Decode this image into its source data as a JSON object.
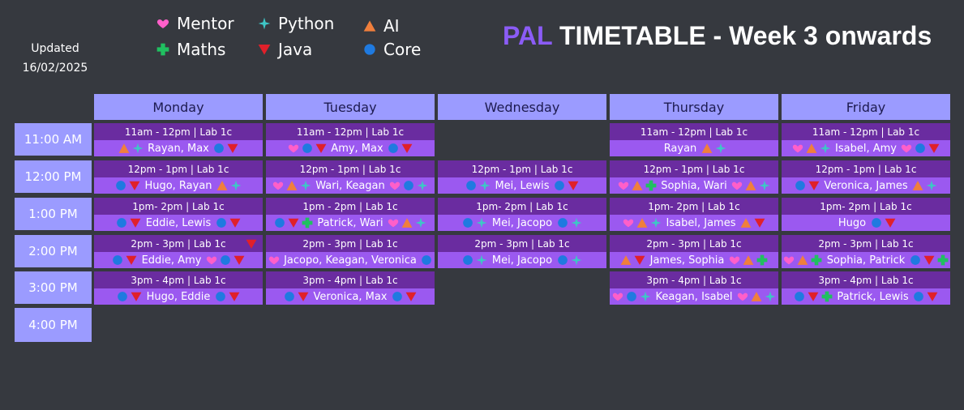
{
  "updated": {
    "label": "Updated",
    "date": "16/02/2025"
  },
  "legend": [
    {
      "label": "Mentor",
      "icon": "heart"
    },
    {
      "label": "Python",
      "icon": "sparkle"
    },
    {
      "label": "AI",
      "icon": "triangle"
    },
    {
      "label": "Maths",
      "icon": "cross"
    },
    {
      "label": "Java",
      "icon": "down-triangle"
    },
    {
      "label": "Core",
      "icon": "dot"
    }
  ],
  "title": {
    "prefix": "PAL",
    "rest": "TIMETABLE - Week 3 onwards"
  },
  "days": [
    "Monday",
    "Tuesday",
    "Wednesday",
    "Thursday",
    "Friday"
  ],
  "times": [
    "11:00 AM",
    "12:00 PM",
    "1:00 PM",
    "2:00 PM",
    "3:00 PM",
    "4:00 PM"
  ],
  "colors": {
    "heart": "#ff5fc9",
    "sparkle": "#3ec6c6",
    "triangle": "#f07f3c",
    "cross": "#20c060",
    "down-triangle": "#e0202a",
    "dot": "#1f7ae0"
  },
  "slots": [
    {
      "day": 0,
      "time": 0,
      "header": "11am - 12pm  |  Lab 1c",
      "names": "Rayan, Max",
      "pre": [
        "triangle",
        "sparkle"
      ],
      "post": [
        "dot",
        "down-triangle"
      ]
    },
    {
      "day": 1,
      "time": 0,
      "header": "11am - 12pm  |  Lab 1c",
      "names": "Amy, Max",
      "pre": [
        "heart",
        "dot",
        "down-triangle"
      ],
      "post": [
        "dot",
        "down-triangle"
      ]
    },
    {
      "day": 3,
      "time": 0,
      "header": "11am - 12pm  |  Lab 1c",
      "names": "Rayan",
      "pre": [],
      "post": [
        "triangle",
        "sparkle"
      ]
    },
    {
      "day": 4,
      "time": 0,
      "header": "11am - 12pm  |  Lab 1c",
      "names": "Isabel, Amy",
      "pre": [
        "heart",
        "triangle",
        "sparkle"
      ],
      "post": [
        "heart",
        "dot",
        "down-triangle"
      ]
    },
    {
      "day": 0,
      "time": 1,
      "header": "12pm - 1pm  |  Lab 1c",
      "names": "Hugo, Rayan",
      "pre": [
        "dot",
        "down-triangle"
      ],
      "post": [
        "triangle",
        "sparkle"
      ]
    },
    {
      "day": 1,
      "time": 1,
      "header": "12pm - 1pm  |  Lab 1c",
      "names": "Wari, Keagan",
      "pre": [
        "heart",
        "triangle",
        "sparkle"
      ],
      "post": [
        "heart",
        "dot",
        "sparkle"
      ]
    },
    {
      "day": 2,
      "time": 1,
      "header": "12pm - 1pm  |  Lab 1c",
      "names": "Mei, Lewis",
      "pre": [
        "dot",
        "sparkle"
      ],
      "post": [
        "dot",
        "down-triangle"
      ]
    },
    {
      "day": 3,
      "time": 1,
      "header": "12pm - 1pm  |  Lab 1c",
      "names": "Sophia, Wari",
      "pre": [
        "heart",
        "triangle",
        "cross"
      ],
      "post": [
        "heart",
        "triangle",
        "sparkle"
      ]
    },
    {
      "day": 4,
      "time": 1,
      "header": "12pm - 1pm  |  Lab 1c",
      "names": "Veronica, James",
      "pre": [
        "dot",
        "down-triangle"
      ],
      "post": [
        "triangle",
        "sparkle"
      ]
    },
    {
      "day": 0,
      "time": 2,
      "header": "1pm- 2pm  |  Lab 1c",
      "names": "Eddie, Lewis",
      "pre": [
        "dot",
        "down-triangle"
      ],
      "post": [
        "dot",
        "down-triangle"
      ]
    },
    {
      "day": 1,
      "time": 2,
      "header": "1pm - 2pm  |  Lab 1c",
      "names": "Patrick, Wari",
      "pre": [
        "dot",
        "down-triangle",
        "cross"
      ],
      "post": [
        "heart",
        "triangle",
        "sparkle"
      ]
    },
    {
      "day": 2,
      "time": 2,
      "header": "1pm- 2pm  |  Lab 1c",
      "names": "Mei, Jacopo",
      "pre": [
        "dot",
        "sparkle"
      ],
      "post": [
        "dot",
        "sparkle"
      ]
    },
    {
      "day": 3,
      "time": 2,
      "header": "1pm- 2pm  |  Lab 1c",
      "names": "Isabel, James",
      "pre": [
        "heart",
        "triangle",
        "sparkle"
      ],
      "post": [
        "triangle",
        "down-triangle"
      ]
    },
    {
      "day": 4,
      "time": 2,
      "header": "1pm- 2pm  |  Lab 1c",
      "names": "Hugo",
      "pre": [],
      "post": [
        "dot",
        "down-triangle"
      ]
    },
    {
      "day": 0,
      "time": 3,
      "header": "2pm - 3pm  |  Lab 1c",
      "names": "Eddie, Amy",
      "pre": [
        "dot",
        "down-triangle"
      ],
      "post": [
        "heart",
        "dot",
        "down-triangle"
      ],
      "extra": "down-triangle"
    },
    {
      "day": 1,
      "time": 3,
      "header": "2pm - 3pm  |  Lab 1c",
      "names": "Jacopo, Keagan, Veronica",
      "pre": [
        "heart"
      ],
      "post": [
        "dot"
      ]
    },
    {
      "day": 2,
      "time": 3,
      "header": "2pm - 3pm  |  Lab 1c",
      "names": "Mei, Jacopo",
      "pre": [
        "dot",
        "sparkle"
      ],
      "post": [
        "dot",
        "sparkle"
      ]
    },
    {
      "day": 3,
      "time": 3,
      "header": "2pm - 3pm  |  Lab 1c",
      "names": "James, Sophia",
      "pre": [
        "triangle",
        "down-triangle"
      ],
      "post": [
        "heart",
        "triangle",
        "cross"
      ]
    },
    {
      "day": 4,
      "time": 3,
      "header": "2pm - 3pm  |  Lab 1c",
      "names": "Sophia, Patrick",
      "pre": [
        "heart",
        "triangle",
        "cross"
      ],
      "post": [
        "dot",
        "down-triangle",
        "cross"
      ]
    },
    {
      "day": 0,
      "time": 4,
      "header": "3pm - 4pm  |  Lab 1c",
      "names": "Hugo, Eddie",
      "pre": [
        "dot",
        "down-triangle"
      ],
      "post": [
        "dot",
        "down-triangle"
      ]
    },
    {
      "day": 1,
      "time": 4,
      "header": "3pm - 4pm  |  Lab 1c",
      "names": "Veronica, Max",
      "pre": [
        "dot",
        "down-triangle"
      ],
      "post": [
        "dot",
        "down-triangle"
      ]
    },
    {
      "day": 3,
      "time": 4,
      "header": "3pm - 4pm  |  Lab 1c",
      "names": "Keagan, Isabel",
      "pre": [
        "heart",
        "dot",
        "sparkle"
      ],
      "post": [
        "heart",
        "triangle",
        "sparkle"
      ]
    },
    {
      "day": 4,
      "time": 4,
      "header": "3pm - 4pm  |  Lab 1c",
      "names": "Patrick, Lewis",
      "pre": [
        "dot",
        "down-triangle",
        "cross"
      ],
      "post": [
        "dot",
        "down-triangle"
      ]
    }
  ]
}
